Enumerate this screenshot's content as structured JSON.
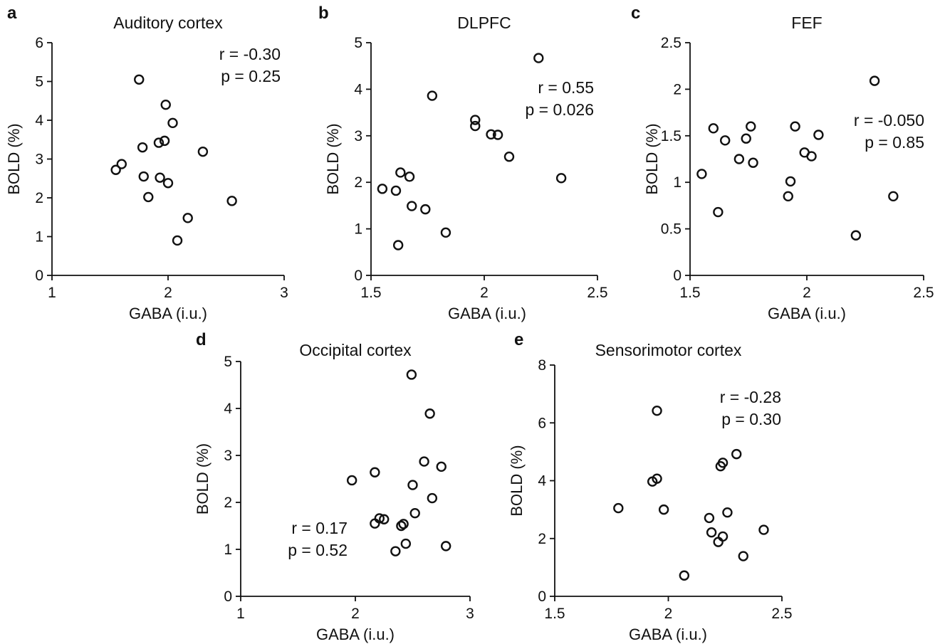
{
  "chart_data": [
    {
      "panel": "a",
      "type": "scatter",
      "title": "Auditory cortex",
      "xlabel": "GABA (i.u.)",
      "ylabel": "BOLD (%)",
      "xlim": [
        1,
        3
      ],
      "ylim": [
        0,
        6
      ],
      "xticks": [
        "1",
        "2",
        "3"
      ],
      "yticks": [
        "0",
        "1",
        "2",
        "3",
        "4",
        "5",
        "6"
      ],
      "stats": [
        "r = -0.30",
        "p = 0.25"
      ],
      "points": [
        {
          "x": 1.75,
          "y": 5.05
        },
        {
          "x": 1.98,
          "y": 4.4
        },
        {
          "x": 2.04,
          "y": 3.93
        },
        {
          "x": 1.97,
          "y": 3.47
        },
        {
          "x": 1.92,
          "y": 3.42
        },
        {
          "x": 1.78,
          "y": 3.3
        },
        {
          "x": 2.3,
          "y": 3.19
        },
        {
          "x": 1.6,
          "y": 2.87
        },
        {
          "x": 1.55,
          "y": 2.72
        },
        {
          "x": 1.79,
          "y": 2.55
        },
        {
          "x": 1.93,
          "y": 2.52
        },
        {
          "x": 2.0,
          "y": 2.38
        },
        {
          "x": 1.83,
          "y": 2.02
        },
        {
          "x": 2.55,
          "y": 1.92
        },
        {
          "x": 2.17,
          "y": 1.48
        },
        {
          "x": 2.08,
          "y": 0.9
        }
      ]
    },
    {
      "panel": "b",
      "type": "scatter",
      "title": "DLPFC",
      "xlabel": "GABA (i.u.)",
      "ylabel": "BOLD (%)",
      "xlim": [
        1.5,
        2.5
      ],
      "ylim": [
        0,
        5
      ],
      "xticks": [
        "1.5",
        "2",
        "2.5"
      ],
      "yticks": [
        "0",
        "1",
        "2",
        "3",
        "4",
        "5"
      ],
      "stats": [
        "r = 0.55",
        "p = 0.026"
      ],
      "points": [
        {
          "x": 2.24,
          "y": 4.67
        },
        {
          "x": 1.77,
          "y": 3.86
        },
        {
          "x": 1.96,
          "y": 3.34
        },
        {
          "x": 1.96,
          "y": 3.21
        },
        {
          "x": 2.03,
          "y": 3.03
        },
        {
          "x": 2.06,
          "y": 3.02
        },
        {
          "x": 2.11,
          "y": 2.55
        },
        {
          "x": 1.63,
          "y": 2.21
        },
        {
          "x": 1.67,
          "y": 2.12
        },
        {
          "x": 2.34,
          "y": 2.09
        },
        {
          "x": 1.55,
          "y": 1.86
        },
        {
          "x": 1.61,
          "y": 1.82
        },
        {
          "x": 1.68,
          "y": 1.49
        },
        {
          "x": 1.74,
          "y": 1.42
        },
        {
          "x": 1.83,
          "y": 0.92
        },
        {
          "x": 1.62,
          "y": 0.65
        }
      ]
    },
    {
      "panel": "c",
      "type": "scatter",
      "title": "FEF",
      "xlabel": "GABA (i.u.)",
      "ylabel": "BOLD (%)",
      "xlim": [
        1.5,
        2.5
      ],
      "ylim": [
        0,
        2.5
      ],
      "xticks": [
        "1.5",
        "2",
        "2.5"
      ],
      "yticks": [
        "0",
        "0.5",
        "1",
        "1.5",
        "2",
        "2.5"
      ],
      "stats": [
        "r = -0.050",
        "p = 0.85"
      ],
      "points": [
        {
          "x": 2.29,
          "y": 2.09
        },
        {
          "x": 1.6,
          "y": 1.58
        },
        {
          "x": 1.76,
          "y": 1.6
        },
        {
          "x": 1.95,
          "y": 1.6
        },
        {
          "x": 2.05,
          "y": 1.51
        },
        {
          "x": 1.74,
          "y": 1.47
        },
        {
          "x": 1.65,
          "y": 1.45
        },
        {
          "x": 1.99,
          "y": 1.32
        },
        {
          "x": 2.02,
          "y": 1.28
        },
        {
          "x": 1.71,
          "y": 1.25
        },
        {
          "x": 1.77,
          "y": 1.21
        },
        {
          "x": 1.55,
          "y": 1.09
        },
        {
          "x": 1.93,
          "y": 1.01
        },
        {
          "x": 1.92,
          "y": 0.85
        },
        {
          "x": 2.37,
          "y": 0.85
        },
        {
          "x": 1.62,
          "y": 0.68
        },
        {
          "x": 2.21,
          "y": 0.43
        }
      ]
    },
    {
      "panel": "d",
      "type": "scatter",
      "title": "Occipital cortex",
      "xlabel": "GABA (i.u.)",
      "ylabel": "BOLD (%)",
      "xlim": [
        1,
        3
      ],
      "ylim": [
        0,
        5
      ],
      "xticks": [
        "1",
        "2",
        "3"
      ],
      "yticks": [
        "0",
        "1",
        "2",
        "3",
        "4",
        "5"
      ],
      "stats": [
        "r = 0.17",
        "p = 0.52"
      ],
      "points": [
        {
          "x": 2.49,
          "y": 4.72
        },
        {
          "x": 2.65,
          "y": 3.89
        },
        {
          "x": 2.6,
          "y": 2.87
        },
        {
          "x": 2.75,
          "y": 2.76
        },
        {
          "x": 2.17,
          "y": 2.64
        },
        {
          "x": 1.97,
          "y": 2.47
        },
        {
          "x": 2.5,
          "y": 2.37
        },
        {
          "x": 2.67,
          "y": 2.09
        },
        {
          "x": 2.52,
          "y": 1.77
        },
        {
          "x": 2.21,
          "y": 1.66
        },
        {
          "x": 2.25,
          "y": 1.64
        },
        {
          "x": 2.17,
          "y": 1.55
        },
        {
          "x": 2.42,
          "y": 1.54
        },
        {
          "x": 2.4,
          "y": 1.5
        },
        {
          "x": 2.44,
          "y": 1.12
        },
        {
          "x": 2.79,
          "y": 1.07
        },
        {
          "x": 2.35,
          "y": 0.96
        }
      ]
    },
    {
      "panel": "e",
      "type": "scatter",
      "title": "Sensorimotor cortex",
      "xlabel": "GABA (i.u.)",
      "ylabel": "BOLD (%)",
      "xlim": [
        1.5,
        2.5
      ],
      "ylim": [
        0,
        8
      ],
      "xticks": [
        "1.5",
        "2",
        "2.5"
      ],
      "yticks": [
        "0",
        "2",
        "4",
        "6",
        "8"
      ],
      "stats": [
        "r = -0.28",
        "p = 0.30"
      ],
      "points": [
        {
          "x": 1.95,
          "y": 6.42
        },
        {
          "x": 2.3,
          "y": 4.92
        },
        {
          "x": 2.24,
          "y": 4.62
        },
        {
          "x": 2.23,
          "y": 4.5
        },
        {
          "x": 1.95,
          "y": 4.07
        },
        {
          "x": 1.93,
          "y": 3.97
        },
        {
          "x": 1.78,
          "y": 3.05
        },
        {
          "x": 1.98,
          "y": 3.0
        },
        {
          "x": 2.26,
          "y": 2.9
        },
        {
          "x": 2.18,
          "y": 2.71
        },
        {
          "x": 2.42,
          "y": 2.3
        },
        {
          "x": 2.19,
          "y": 2.21
        },
        {
          "x": 2.24,
          "y": 2.07
        },
        {
          "x": 2.22,
          "y": 1.88
        },
        {
          "x": 2.33,
          "y": 1.39
        },
        {
          "x": 2.07,
          "y": 0.72
        }
      ]
    }
  ]
}
